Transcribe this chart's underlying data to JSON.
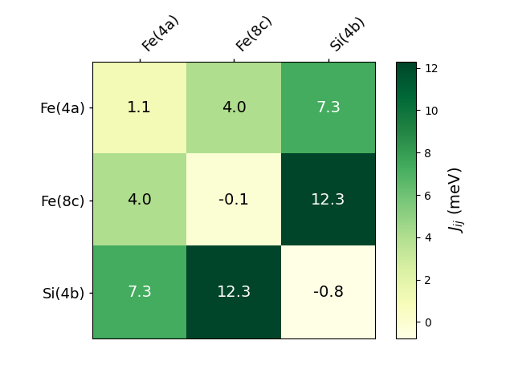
{
  "labels": [
    "Fe(4a)",
    "Fe(8c)",
    "Si(4b)"
  ],
  "matrix": [
    [
      1.1,
      4.0,
      7.3
    ],
    [
      4.0,
      -0.1,
      12.3
    ],
    [
      7.3,
      12.3,
      -0.8
    ]
  ],
  "vmin": -0.8,
  "vmax": 12.3,
  "cmap": "YlGn",
  "colorbar_label": "$\\it{J}_{ij}$ (meV)",
  "colorbar_ticks": [
    0,
    2,
    4,
    6,
    8,
    10,
    12
  ],
  "text_color_threshold": 6.0,
  "fontsize_labels": 13,
  "fontsize_values": 14,
  "fontsize_colorbar": 14,
  "background_color": "#ffffff"
}
